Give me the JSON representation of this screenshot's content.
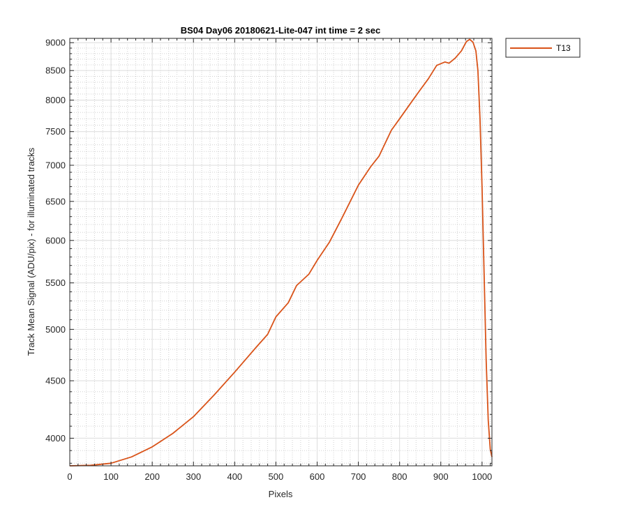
{
  "chart_data": {
    "type": "line",
    "title": "BS04 Day06 20180621-Lite-047 int time = 2 sec",
    "xlabel": "Pixels",
    "ylabel": "Track Mean Signal (ADU/pix) - for illuminated tracks",
    "xlim": [
      0,
      1024
    ],
    "ylim": [
      3780,
      9080
    ],
    "yscale": "log",
    "grid": true,
    "minor_grid": true,
    "xticks": [
      0,
      100,
      200,
      300,
      400,
      500,
      600,
      700,
      800,
      900,
      1000
    ],
    "yticks": [
      4000,
      4500,
      5000,
      5500,
      6000,
      6500,
      7000,
      7500,
      8000,
      8500,
      9000
    ],
    "legend_position": "top-right-outside",
    "series": [
      {
        "name": "T13",
        "color": "#d95319",
        "points": [
          [
            0,
            3780
          ],
          [
            50,
            3784
          ],
          [
            100,
            3800
          ],
          [
            150,
            3850
          ],
          [
            200,
            3930
          ],
          [
            250,
            4040
          ],
          [
            300,
            4180
          ],
          [
            350,
            4370
          ],
          [
            400,
            4580
          ],
          [
            450,
            4810
          ],
          [
            480,
            4950
          ],
          [
            500,
            5130
          ],
          [
            530,
            5280
          ],
          [
            550,
            5470
          ],
          [
            580,
            5600
          ],
          [
            600,
            5760
          ],
          [
            630,
            5980
          ],
          [
            660,
            6280
          ],
          [
            700,
            6720
          ],
          [
            730,
            6980
          ],
          [
            750,
            7130
          ],
          [
            780,
            7520
          ],
          [
            800,
            7700
          ],
          [
            830,
            7980
          ],
          [
            850,
            8170
          ],
          [
            870,
            8360
          ],
          [
            890,
            8590
          ],
          [
            910,
            8650
          ],
          [
            920,
            8630
          ],
          [
            935,
            8720
          ],
          [
            950,
            8850
          ],
          [
            962,
            9020
          ],
          [
            970,
            9060
          ],
          [
            978,
            9010
          ],
          [
            985,
            8850
          ],
          [
            990,
            8500
          ],
          [
            995,
            7700
          ],
          [
            1000,
            6700
          ],
          [
            1005,
            5600
          ],
          [
            1010,
            4700
          ],
          [
            1015,
            4150
          ],
          [
            1020,
            3910
          ],
          [
            1024,
            3850
          ]
        ]
      }
    ]
  }
}
